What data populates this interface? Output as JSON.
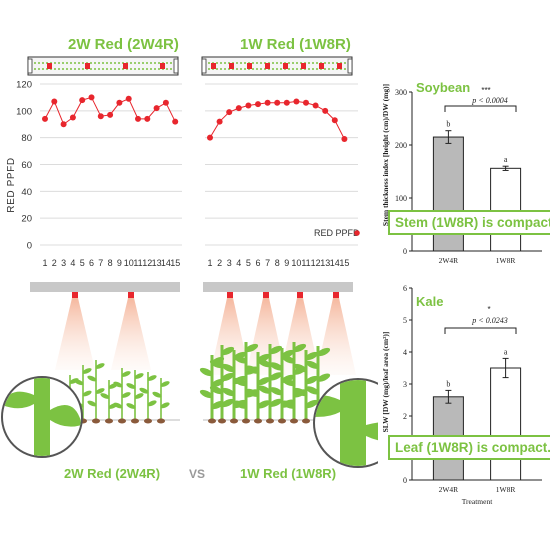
{
  "left_panel": {
    "title_2w": "2W Red (2W4R)",
    "title_1w": "1W Red (1W8R)",
    "y_axis_label": "RED PPFD",
    "legend_label": "RED PPFD",
    "bottom_label_2w": "2W Red (2W4R)",
    "vs_label": "VS",
    "bottom_label_1w": "1W Red (1W8R)"
  },
  "soybean": {
    "title": "Soybean",
    "y_axis_label": "Stem thickness index [height (cm)/DW (mg)]",
    "significance_stars": "***",
    "p_value": "p < 0.0004",
    "callout": "Stem (1W8R) is compact.",
    "bar_letters": [
      "b",
      "a"
    ]
  },
  "kale": {
    "title": "Kale",
    "y_axis_label": "SLW [DW (mg)/leaf area (cm²)]",
    "significance_stars": "*",
    "p_value": "p < 0.0243",
    "callout": "Leaf (1W8R) is compact.",
    "bar_letters": [
      "b",
      "a"
    ],
    "x_axis_title": "Treatment"
  },
  "colors": {
    "green": "#7cc242",
    "red_dot": "#e8262d",
    "bar_gray": "#b9b9b9",
    "bar_white": "#ffffff"
  },
  "chart_data": [
    {
      "type": "line",
      "panel": "2W Red (2W4R)",
      "x": [
        1,
        2,
        3,
        4,
        5,
        6,
        7,
        8,
        9,
        10,
        11,
        12,
        13,
        14,
        15
      ],
      "values": [
        94,
        107,
        90,
        95,
        108,
        110,
        96,
        97,
        106,
        109,
        94,
        94,
        102,
        106,
        92
      ],
      "ylim": [
        0,
        120
      ],
      "yticks": [
        0,
        20,
        40,
        60,
        80,
        100,
        120
      ],
      "ylabel": "RED PPFD"
    },
    {
      "type": "line",
      "panel": "1W Red (1W8R)",
      "x": [
        1,
        2,
        3,
        4,
        5,
        6,
        7,
        8,
        9,
        10,
        11,
        12,
        13,
        14,
        15
      ],
      "values": [
        80,
        92,
        99,
        102,
        104,
        105,
        106,
        106,
        106,
        107,
        106,
        104,
        100,
        93,
        79
      ],
      "ylim": [
        0,
        120
      ],
      "yticks": [
        0,
        20,
        40,
        60,
        80,
        100,
        120
      ],
      "legend": "RED PPFD"
    },
    {
      "type": "bar",
      "title": "Soybean",
      "categories": [
        "2W4R",
        "1W8R"
      ],
      "values": [
        215,
        156
      ],
      "errors": [
        12,
        4
      ],
      "ylim": [
        0,
        300
      ],
      "yticks": [
        0,
        100,
        200,
        300
      ],
      "ylabel": "Stem thickness index [height (cm)/DW (mg)]"
    },
    {
      "type": "bar",
      "title": "Kale",
      "categories": [
        "2W4R",
        "1W8R"
      ],
      "values": [
        2.6,
        3.5
      ],
      "errors": [
        0.2,
        0.3
      ],
      "ylim": [
        0,
        6
      ],
      "yticks": [
        0,
        1,
        2,
        3,
        4,
        5,
        6
      ],
      "ylabel": "SLW [DW (mg)/leaf area (cm²)]",
      "xlabel": "Treatment"
    }
  ]
}
